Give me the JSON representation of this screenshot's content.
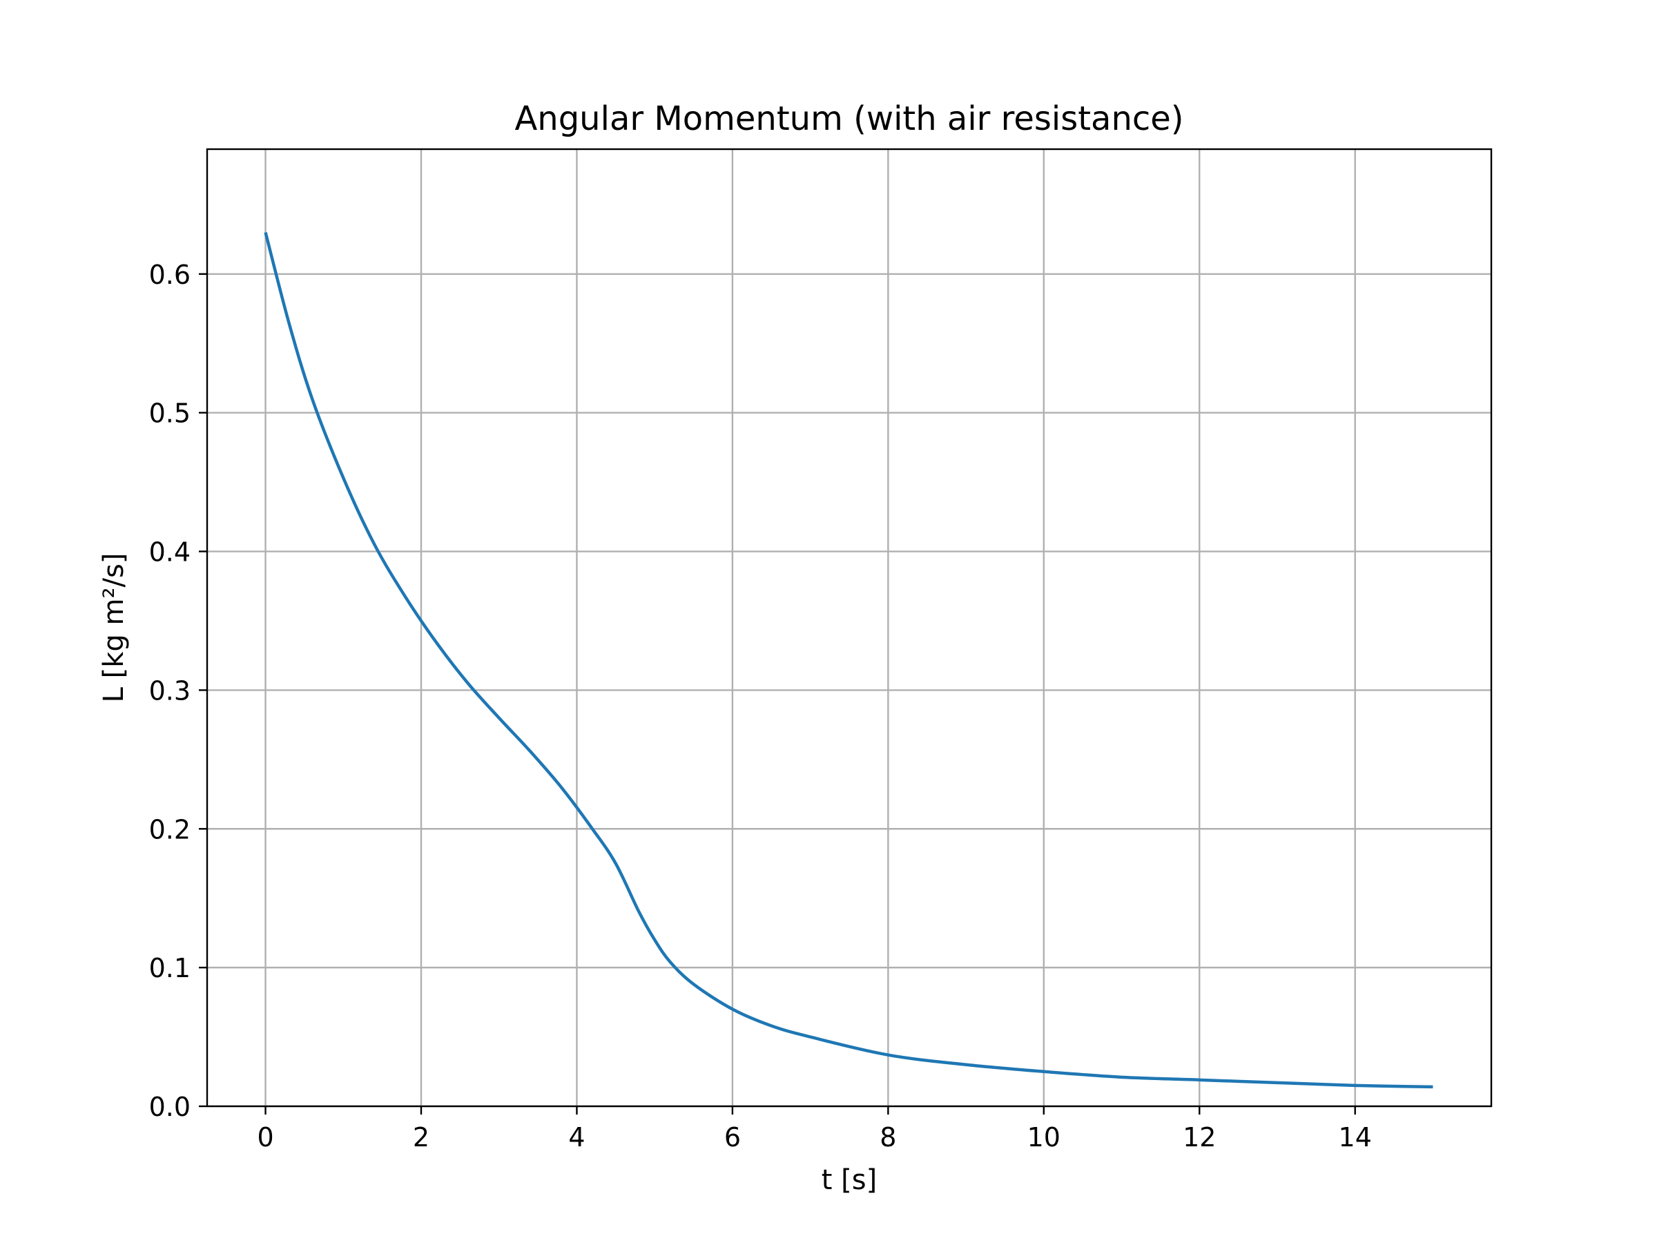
{
  "chart_data": {
    "type": "line",
    "title": "Angular Momentum (with air resistance)",
    "xlabel": "t [s]",
    "ylabel": "L [kg m²/s]",
    "xlim": [
      -0.75,
      15.75
    ],
    "ylim": [
      0.0,
      0.69
    ],
    "grid": true,
    "legend": "none",
    "x_ticks": [
      0,
      2,
      4,
      6,
      8,
      10,
      12,
      14
    ],
    "x_tick_labels": [
      "0",
      "2",
      "4",
      "6",
      "8",
      "10",
      "12",
      "14"
    ],
    "y_ticks": [
      0.0,
      0.1,
      0.2,
      0.3,
      0.4,
      0.5,
      0.6
    ],
    "y_tick_labels": [
      "0.0",
      "0.1",
      "0.2",
      "0.3",
      "0.4",
      "0.5",
      "0.6"
    ],
    "line_color": "#1f77b4",
    "series": [
      {
        "x": [
          0,
          0.3,
          0.6,
          1.0,
          1.4,
          1.8,
          2.2,
          2.6,
          3.0,
          3.4,
          3.8,
          4.2,
          4.5,
          4.8,
          5.0,
          5.2,
          5.5,
          6.0,
          6.5,
          7.0,
          8.0,
          9.0,
          10.0,
          11.0,
          12.0,
          13.0,
          14.0,
          15.0
        ],
        "y": [
          0.63,
          0.565,
          0.51,
          0.453,
          0.405,
          0.367,
          0.334,
          0.305,
          0.28,
          0.256,
          0.23,
          0.2,
          0.175,
          0.14,
          0.12,
          0.104,
          0.088,
          0.07,
          0.058,
          0.05,
          0.037,
          0.03,
          0.025,
          0.021,
          0.019,
          0.017,
          0.015,
          0.014
        ]
      }
    ]
  }
}
